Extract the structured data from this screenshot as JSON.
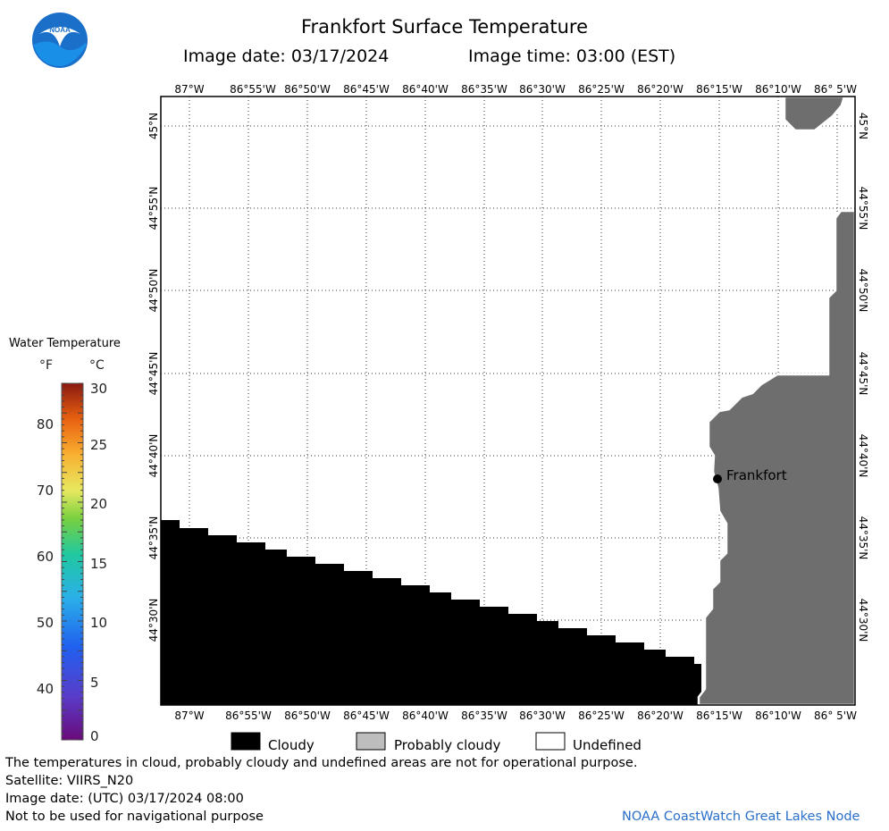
{
  "header": {
    "title": "Frankfort Surface Temperature",
    "image_date": "Image date: 03/17/2024",
    "image_time": "Image time: 03:00 (EST)"
  },
  "map": {
    "lon_labels": [
      "87°W",
      "86°55'W",
      "86°50'W",
      "86°45'W",
      "86°40'W",
      "86°35'W",
      "86°30'W",
      "86°25'W",
      "86°20'W",
      "86°15'W",
      "86°10'W",
      "86° 5'W"
    ],
    "lat_labels": [
      "45°N",
      "44°55'N",
      "44°50'N",
      "44°45'N",
      "44°40'N",
      "44°35'N",
      "44°30'N"
    ],
    "city": "Frankfort",
    "colors": {
      "land": "#6e6e6e",
      "cloud": "#000000",
      "grid": "#333333"
    }
  },
  "colorbar": {
    "title": "Water Temperature",
    "unit_f": "°F",
    "unit_c": "°C",
    "f_ticks": [
      "80",
      "70",
      "60",
      "50",
      "40"
    ],
    "c_ticks": [
      "30",
      "25",
      "20",
      "15",
      "10",
      "5",
      "0"
    ],
    "range_f": [
      32,
      86
    ],
    "range_c": [
      0,
      30
    ]
  },
  "legend": {
    "cloudy": "Cloudy",
    "probably_cloudy": "Probably cloudy",
    "undefined": "Undefined"
  },
  "footer": {
    "note": "The temperatures in cloud, probably cloudy and undefined areas are not for operational purpose.",
    "satellite": "Satellite: VIIRS_N20",
    "utc_date": "Image date: (UTC) 03/17/2024  08:00",
    "nav": "Not to be used for navigational purpose",
    "credit": "NOAA CoastWatch Great Lakes Node"
  }
}
